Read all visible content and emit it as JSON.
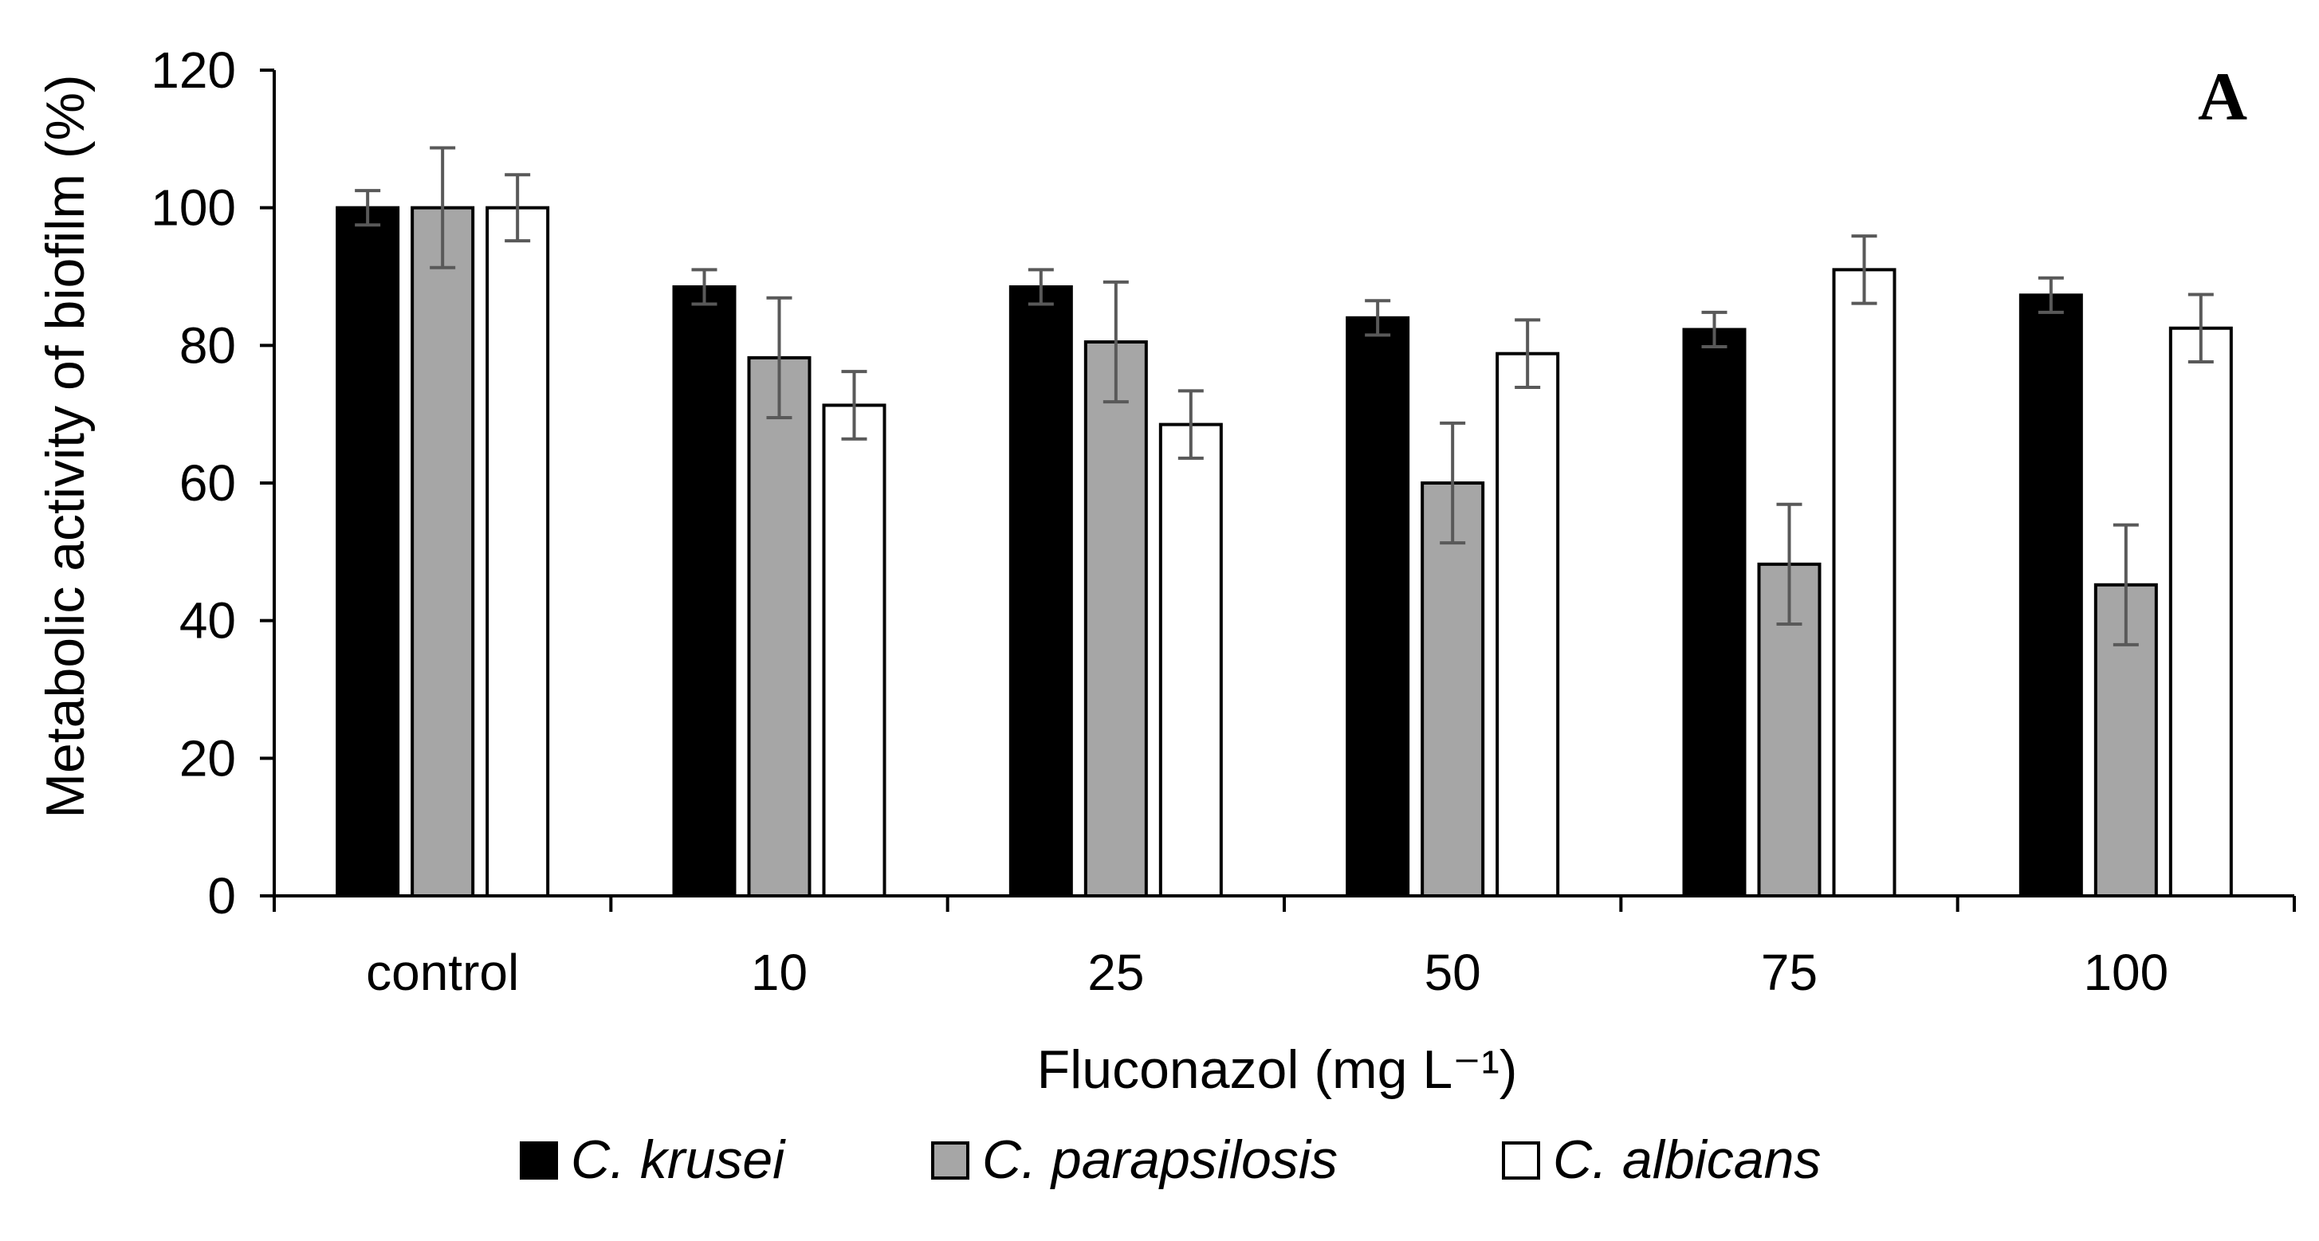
{
  "chart_data": {
    "type": "bar",
    "title": "",
    "panel_label": "A",
    "xlabel": "Fluconazol (mg L⁻¹)",
    "ylabel": "Metabolic activity of biofilm (%)",
    "ylim": [
      0,
      120
    ],
    "yticks": [
      "0",
      "20",
      "40",
      "60",
      "80",
      "100",
      "120"
    ],
    "grid": false,
    "legend_position": "bottom",
    "categories": [
      "control",
      "10",
      "25",
      "50",
      "75",
      "100"
    ],
    "series": [
      {
        "name": "C. krusei",
        "color": "#000000",
        "values": [
          100,
          88.5,
          88.5,
          84,
          82.3,
          87.3
        ],
        "errors": [
          2.5,
          2.5,
          2.5,
          2.5,
          2.5,
          2.5
        ]
      },
      {
        "name": "C. parapsilosis",
        "color": "#a6a6a6",
        "values": [
          100,
          78.2,
          80.5,
          60,
          48.2,
          45.2
        ],
        "errors": [
          8.7,
          8.7,
          8.7,
          8.7,
          8.7,
          8.7
        ]
      },
      {
        "name": "C. albicans",
        "color": "#ffffff",
        "values": [
          100,
          71.3,
          68.5,
          78.8,
          91,
          82.5
        ],
        "errors": [
          4.8,
          4.9,
          4.9,
          4.9,
          4.9,
          4.9
        ]
      }
    ]
  }
}
